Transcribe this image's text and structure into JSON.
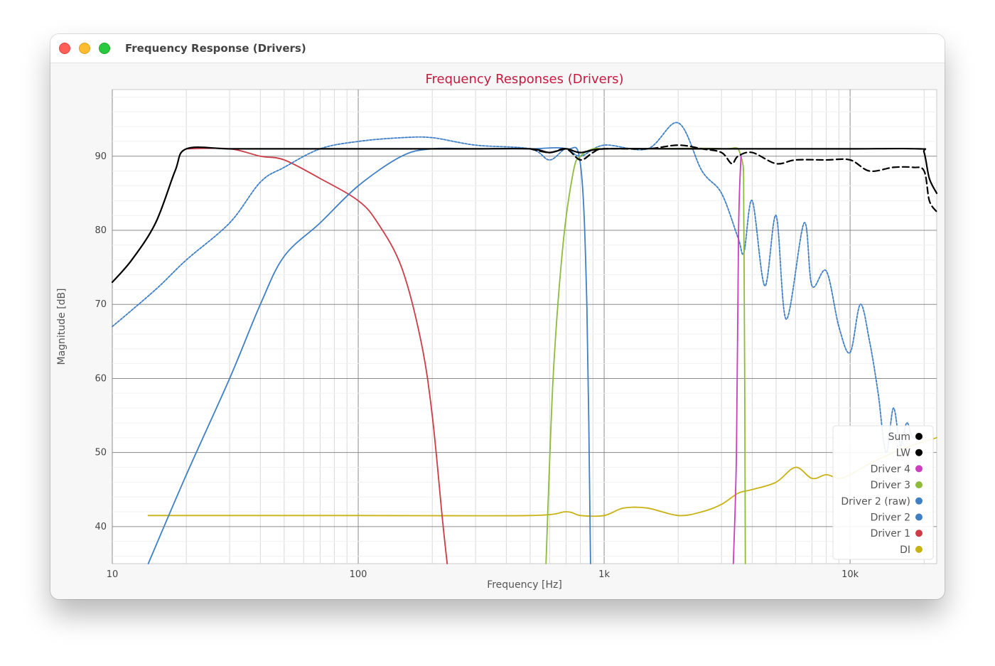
{
  "window": {
    "title": "Frequency Response (Drivers)"
  },
  "colors": {
    "sum": "#000000",
    "lw": "#000000",
    "driver4": "#cc3dbf",
    "driver3": "#8dbb3a",
    "driver2_raw": "#3f7fc5",
    "driver2": "#3f7fc5",
    "driver1": "#cc3b46",
    "di": "#c9b213",
    "title": "#c61a3e"
  },
  "chart_data": {
    "type": "line",
    "title": "Frequency Responses (Drivers)",
    "xlabel": "Frequency [Hz]",
    "ylabel": "Magnitude [dB]",
    "x_scale": "log",
    "xlim": [
      10,
      22500
    ],
    "ylim": [
      35,
      99
    ],
    "x_ticks": [
      {
        "value": 10,
        "label": "10"
      },
      {
        "value": 100,
        "label": "100"
      },
      {
        "value": 1000,
        "label": "1k"
      },
      {
        "value": 10000,
        "label": "10k"
      }
    ],
    "y_ticks": [
      40,
      50,
      60,
      70,
      80,
      90
    ],
    "grid": true,
    "legend_position": "bottom-right",
    "series": [
      {
        "name": "Sum",
        "color": "#000000",
        "style": "solid",
        "points": [
          [
            10,
            73
          ],
          [
            12,
            76
          ],
          [
            15,
            81
          ],
          [
            18,
            88
          ],
          [
            20,
            91
          ],
          [
            30,
            91
          ],
          [
            50,
            91
          ],
          [
            100,
            91
          ],
          [
            200,
            91
          ],
          [
            300,
            91
          ],
          [
            500,
            91
          ],
          [
            600,
            90.5
          ],
          [
            700,
            91
          ],
          [
            800,
            90.5
          ],
          [
            1000,
            91
          ],
          [
            2000,
            91
          ],
          [
            5000,
            91
          ],
          [
            10000,
            91
          ],
          [
            19000,
            91
          ],
          [
            20000,
            90.5
          ],
          [
            21000,
            87
          ],
          [
            22500,
            85
          ]
        ]
      },
      {
        "name": "LW",
        "color": "#000000",
        "style": "dashed",
        "points": [
          [
            500,
            91
          ],
          [
            600,
            90.5
          ],
          [
            700,
            91
          ],
          [
            800,
            89.5
          ],
          [
            900,
            90.5
          ],
          [
            1000,
            91
          ],
          [
            1500,
            91
          ],
          [
            2000,
            91.5
          ],
          [
            2500,
            91
          ],
          [
            3000,
            90.5
          ],
          [
            3300,
            89
          ],
          [
            3500,
            90
          ],
          [
            4000,
            90.5
          ],
          [
            5000,
            89
          ],
          [
            6000,
            89.5
          ],
          [
            8000,
            89.5
          ],
          [
            10000,
            89.5
          ],
          [
            12000,
            88
          ],
          [
            15000,
            88.5
          ],
          [
            18000,
            88.5
          ],
          [
            20000,
            88
          ],
          [
            21000,
            84
          ],
          [
            22500,
            82.5
          ]
        ]
      },
      {
        "name": "Driver 4",
        "color": "#cc3dbf",
        "style": "solid",
        "points": [
          [
            3350,
            35
          ],
          [
            3450,
            50
          ],
          [
            3520,
            80
          ],
          [
            3600,
            90
          ]
        ]
      },
      {
        "name": "Driver 3",
        "color": "#8dbb3a",
        "style": "solid",
        "points": [
          [
            580,
            35
          ],
          [
            620,
            60
          ],
          [
            680,
            78
          ],
          [
            750,
            88
          ],
          [
            800,
            90
          ],
          [
            900,
            91
          ],
          [
            1000,
            91
          ],
          [
            1500,
            91
          ],
          [
            3000,
            91
          ],
          [
            3600,
            90
          ],
          [
            3700,
            80
          ],
          [
            3750,
            35
          ]
        ]
      },
      {
        "name": "Driver 2 (raw)",
        "color": "#3f7fc5",
        "style": "dotted",
        "points": [
          [
            10,
            67
          ],
          [
            15,
            72
          ],
          [
            20,
            76
          ],
          [
            30,
            81
          ],
          [
            40,
            86.5
          ],
          [
            50,
            88.5
          ],
          [
            70,
            91
          ],
          [
            100,
            92
          ],
          [
            150,
            92.5
          ],
          [
            200,
            92.5
          ],
          [
            300,
            91.5
          ],
          [
            500,
            91
          ],
          [
            600,
            89.5
          ],
          [
            700,
            91
          ],
          [
            800,
            90
          ],
          [
            1000,
            91.5
          ],
          [
            1500,
            91
          ],
          [
            2000,
            94.5
          ],
          [
            2500,
            88
          ],
          [
            3000,
            85
          ],
          [
            3500,
            79
          ],
          [
            3700,
            77
          ],
          [
            4000,
            84
          ],
          [
            4500,
            72.5
          ],
          [
            5000,
            82
          ],
          [
            5500,
            68
          ],
          [
            6500,
            81
          ],
          [
            7000,
            72.5
          ],
          [
            8000,
            74.5
          ],
          [
            9000,
            67
          ],
          [
            10000,
            63.5
          ],
          [
            11000,
            70
          ],
          [
            12000,
            65
          ],
          [
            13000,
            58
          ],
          [
            14000,
            50
          ],
          [
            15000,
            56
          ],
          [
            16000,
            51
          ],
          [
            17000,
            54
          ],
          [
            18000,
            52
          ],
          [
            20000,
            52
          ]
        ]
      },
      {
        "name": "Driver 2",
        "color": "#3f7fc5",
        "style": "solid",
        "points": [
          [
            14,
            35
          ],
          [
            20,
            47
          ],
          [
            30,
            60
          ],
          [
            40,
            70
          ],
          [
            50,
            76.5
          ],
          [
            70,
            81
          ],
          [
            100,
            86
          ],
          [
            150,
            90
          ],
          [
            200,
            91
          ],
          [
            300,
            91
          ],
          [
            500,
            91
          ],
          [
            700,
            91
          ],
          [
            800,
            89
          ],
          [
            850,
            70
          ],
          [
            880,
            35
          ]
        ]
      },
      {
        "name": "Driver 1",
        "color": "#cc3b46",
        "style": "solid",
        "points": [
          [
            20,
            91
          ],
          [
            30,
            91
          ],
          [
            40,
            90
          ],
          [
            50,
            89.5
          ],
          [
            70,
            87
          ],
          [
            100,
            84
          ],
          [
            120,
            81
          ],
          [
            150,
            75
          ],
          [
            180,
            65
          ],
          [
            200,
            55
          ],
          [
            220,
            41
          ],
          [
            230,
            35
          ]
        ]
      },
      {
        "name": "DI",
        "color": "#c9b213",
        "style": "solid",
        "points": [
          [
            14,
            41.5
          ],
          [
            100,
            41.5
          ],
          [
            500,
            41.5
          ],
          [
            700,
            42
          ],
          [
            800,
            41.5
          ],
          [
            1000,
            41.5
          ],
          [
            1200,
            42.5
          ],
          [
            1500,
            42.5
          ],
          [
            2000,
            41.5
          ],
          [
            2500,
            42
          ],
          [
            3000,
            43
          ],
          [
            3500,
            44.5
          ],
          [
            4000,
            45
          ],
          [
            5000,
            46
          ],
          [
            6000,
            48
          ],
          [
            7000,
            46.5
          ],
          [
            8000,
            47
          ],
          [
            9000,
            46.5
          ],
          [
            10000,
            47
          ],
          [
            12000,
            48.5
          ],
          [
            15000,
            50
          ],
          [
            18000,
            51
          ],
          [
            22500,
            52
          ]
        ]
      }
    ]
  }
}
